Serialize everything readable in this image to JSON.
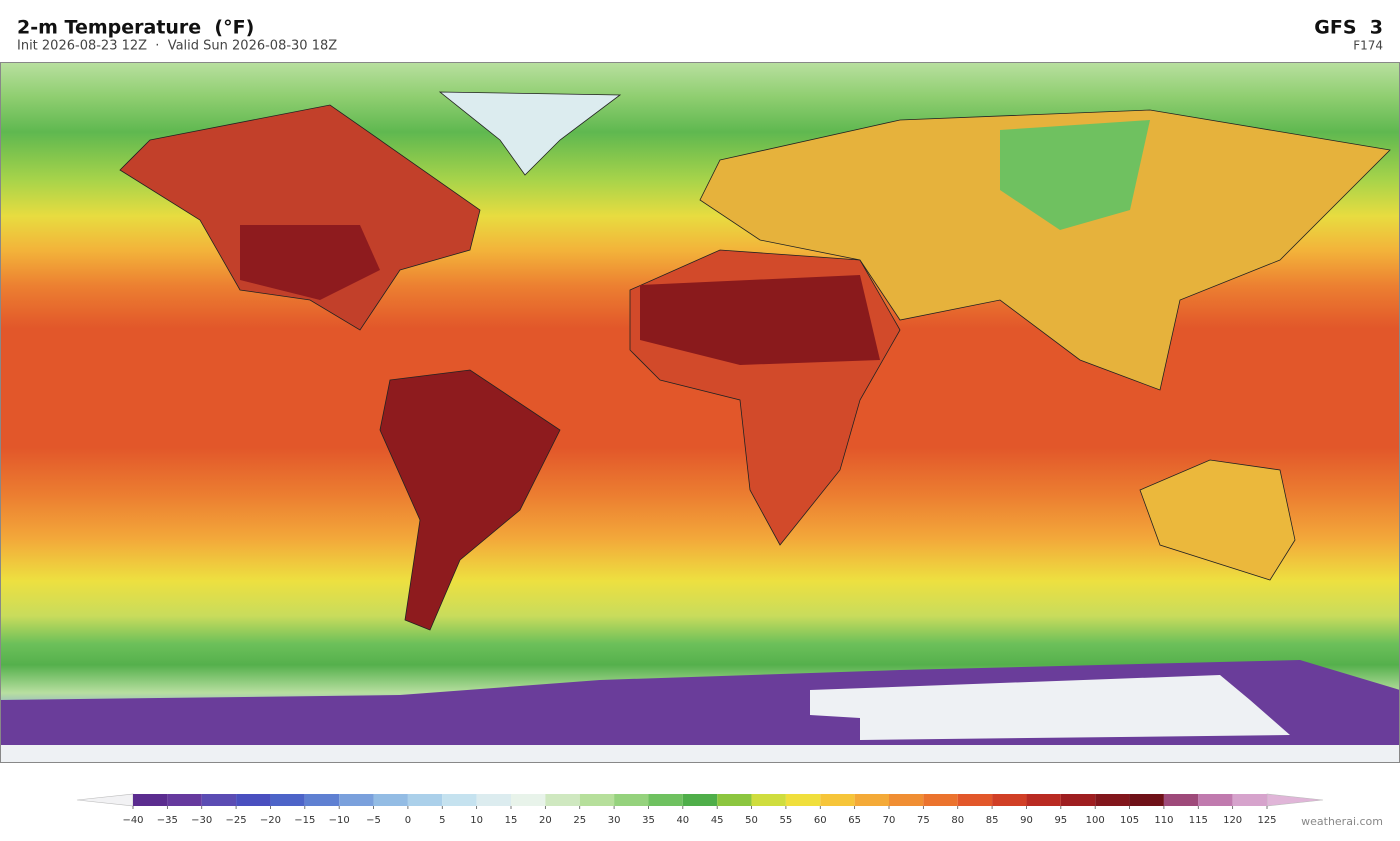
{
  "header": {
    "title": "2-m Temperature  (°F)",
    "subtitle": "Init 2026-08-23 12Z  ·  Valid Sun 2026-08-30 18Z",
    "model": "GFS  3",
    "forecast_hour": "F174"
  },
  "colorbar": {
    "ticks": [
      {
        "value": -40,
        "label": "−40"
      },
      {
        "value": -35,
        "label": "−35"
      },
      {
        "value": -30,
        "label": "−30"
      },
      {
        "value": -25,
        "label": "−25"
      },
      {
        "value": -20,
        "label": "−20"
      },
      {
        "value": -15,
        "label": "−15"
      },
      {
        "value": -10,
        "label": "−10"
      },
      {
        "value": -5,
        "label": "−5"
      },
      0,
      5,
      10,
      15,
      20,
      25,
      30,
      35,
      40,
      45,
      50,
      55,
      60,
      65,
      70,
      75,
      80,
      85,
      90,
      95,
      100,
      105,
      110,
      115,
      120,
      125
    ],
    "colors": [
      "#5b2c8f",
      "#663a9e",
      "#5b4cb3",
      "#4a4fbf",
      "#4d64c8",
      "#5f80d2",
      "#7aa0dc",
      "#93bce4",
      "#abd0ea",
      "#c5e2ef",
      "#dcecef",
      "#e8f3ea",
      "#cfe8c0",
      "#b6df9b",
      "#95d27d",
      "#6fc160",
      "#4fae4a",
      "#8cc63f",
      "#cfdd3e",
      "#f0df3c",
      "#f6c53a",
      "#f4aa38",
      "#f08e33",
      "#eb732e",
      "#e2572a",
      "#d13f26",
      "#b92a22",
      "#9e1e20",
      "#82161c",
      "#6f1118",
      "#9e4a7a",
      "#c07aae",
      "#d6a3cc"
    ],
    "under_color": "#f2f2f4",
    "over_color": "#e0b5d8"
  },
  "watermark": "weatherai.com"
}
